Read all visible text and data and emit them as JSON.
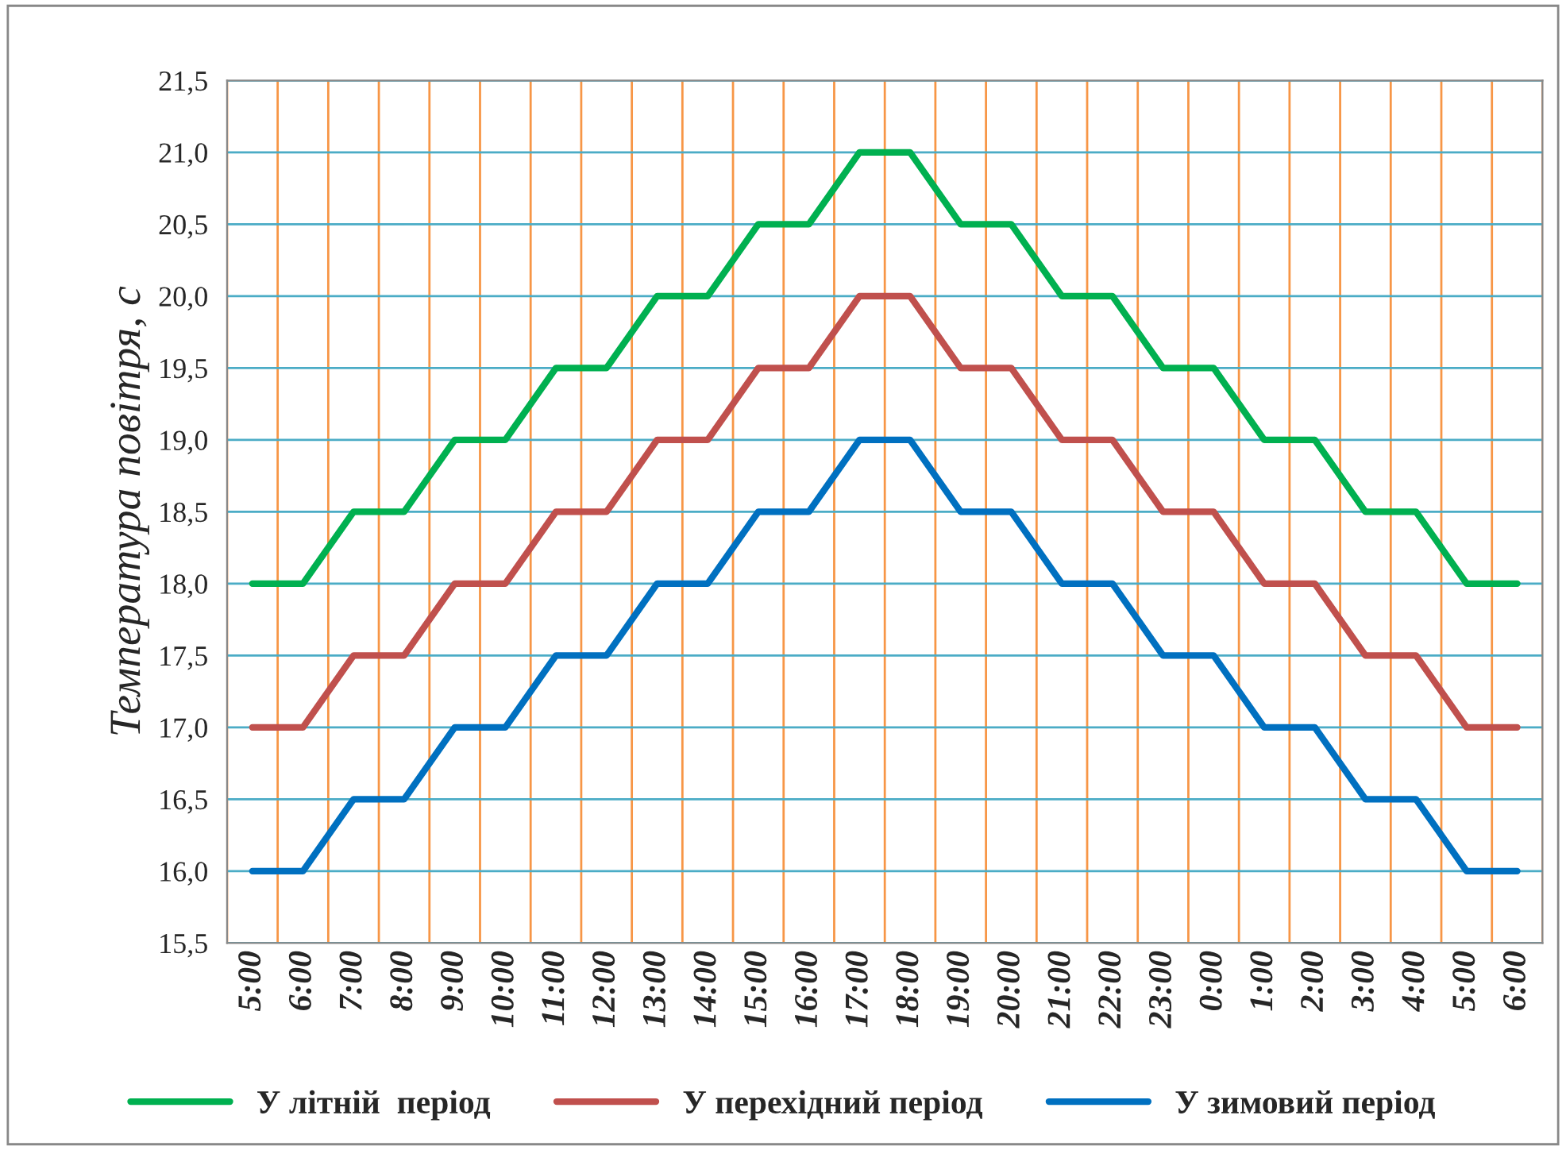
{
  "chart_data": {
    "type": "line",
    "ylabel": "Температура повітря, с",
    "categories": [
      "5:00",
      "6:00",
      "7:00",
      "8:00",
      "9:00",
      "10:00",
      "11:00",
      "12:00",
      "13:00",
      "14:00",
      "15:00",
      "16:00",
      "17:00",
      "18:00",
      "19:00",
      "20:00",
      "21:00",
      "22:00",
      "23:00",
      "0:00",
      "1:00",
      "2:00",
      "3:00",
      "4:00",
      "5:00",
      "6:00"
    ],
    "series": [
      {
        "name": "У літній  період",
        "color": "#00b050",
        "values": [
          18,
          18,
          18.5,
          18.5,
          19,
          19,
          19.5,
          19.5,
          20,
          20,
          20.5,
          20.5,
          21,
          21,
          20.5,
          20.5,
          20,
          20,
          19.5,
          19.5,
          19,
          19,
          18.5,
          18.5,
          18,
          18
        ]
      },
      {
        "name": "У перехідний період",
        "color": "#c0504d",
        "values": [
          17,
          17,
          17.5,
          17.5,
          18,
          18,
          18.5,
          18.5,
          19,
          19,
          19.5,
          19.5,
          20,
          20,
          19.5,
          19.5,
          19,
          19,
          18.5,
          18.5,
          18,
          18,
          17.5,
          17.5,
          17,
          17
        ]
      },
      {
        "name": "У зимовий період",
        "color": "#0070c0",
        "values": [
          16,
          16,
          16.5,
          16.5,
          17,
          17,
          17.5,
          17.5,
          18,
          18,
          18.5,
          18.5,
          19,
          19,
          18.5,
          18.5,
          18,
          18,
          17.5,
          17.5,
          17,
          17,
          16.5,
          16.5,
          16,
          16
        ]
      }
    ],
    "ylim": [
      15.5,
      21.5
    ],
    "yticks": [
      {
        "value": 15.5,
        "label": "15,5"
      },
      {
        "value": 16,
        "label": "16,0"
      },
      {
        "value": 16.5,
        "label": "16,5"
      },
      {
        "value": 17,
        "label": "17,0"
      },
      {
        "value": 17.5,
        "label": "17,5"
      },
      {
        "value": 18,
        "label": "18,0"
      },
      {
        "value": 18.5,
        "label": "18,5"
      },
      {
        "value": 19,
        "label": "19,0"
      },
      {
        "value": 19.5,
        "label": "19,5"
      },
      {
        "value": 20,
        "label": "20,0"
      },
      {
        "value": 20.5,
        "label": "20,5"
      },
      {
        "value": 21,
        "label": "21,0"
      },
      {
        "value": 21.5,
        "label": "21,5"
      }
    ],
    "grid": true,
    "legend": "bottom",
    "marker": "none",
    "line_style": "solid"
  }
}
